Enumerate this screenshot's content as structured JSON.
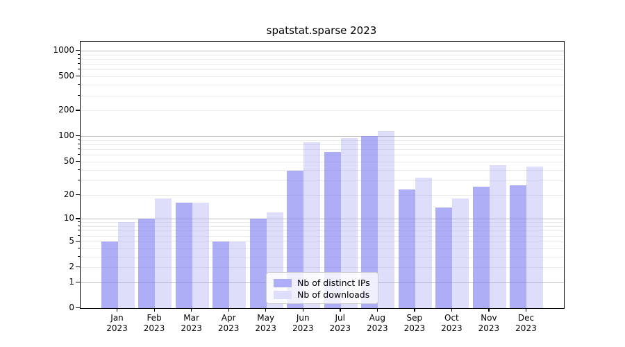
{
  "title": "spatstat.sparse 2023",
  "colors": {
    "background": "#ffffff",
    "axis": "#000000",
    "major_grid": "#bdbdbd",
    "minor_grid": "#ebebeb",
    "ips_bar": "rgba(120,120,242,0.60)",
    "downloads_bar": "rgba(160,160,242,0.35)",
    "ips_hex_on_white": "#aeaef7",
    "downloads_hex_on_white": "#dedefb"
  },
  "chart_data": {
    "type": "bar",
    "title": "spatstat.sparse 2023",
    "y_scale": "log1p",
    "grid": true,
    "legend_position": "lower center",
    "categories": [
      "Jan 2023",
      "Feb 2023",
      "Mar 2023",
      "Apr 2023",
      "May 2023",
      "Jun 2023",
      "Jul 2023",
      "Aug 2023",
      "Sep 2023",
      "Oct 2023",
      "Nov 2023",
      "Dec 2023"
    ],
    "x_tick_months": [
      "Jan",
      "Feb",
      "Mar",
      "Apr",
      "May",
      "Jun",
      "Jul",
      "Aug",
      "Sep",
      "Oct",
      "Nov",
      "Dec"
    ],
    "x_tick_year": "2023",
    "series": [
      {
        "name": "Nb of distinct IPs",
        "color": "rgba(120,120,242,0.60)",
        "values": [
          5,
          10,
          16,
          5,
          10,
          39,
          65,
          100,
          23,
          14,
          25,
          26
        ]
      },
      {
        "name": "Nb of downloads",
        "color": "rgba(160,160,242,0.35)",
        "values": [
          9,
          18,
          16,
          5,
          12,
          85,
          95,
          115,
          32,
          18,
          45,
          44
        ]
      }
    ],
    "y_ticks": [
      0,
      1,
      2,
      5,
      10,
      20,
      50,
      100,
      200,
      500,
      1000
    ],
    "y_major_decades": [
      1,
      10,
      100,
      1000
    ],
    "y_minor_gridlines": [
      3,
      4,
      6,
      7,
      8,
      9,
      30,
      40,
      60,
      70,
      80,
      90,
      300,
      400,
      600,
      700,
      800,
      900
    ],
    "ylim": [
      0,
      1270
    ]
  },
  "legend": {
    "items": [
      {
        "label": "Nb of distinct IPs"
      },
      {
        "label": "Nb of downloads"
      }
    ]
  }
}
